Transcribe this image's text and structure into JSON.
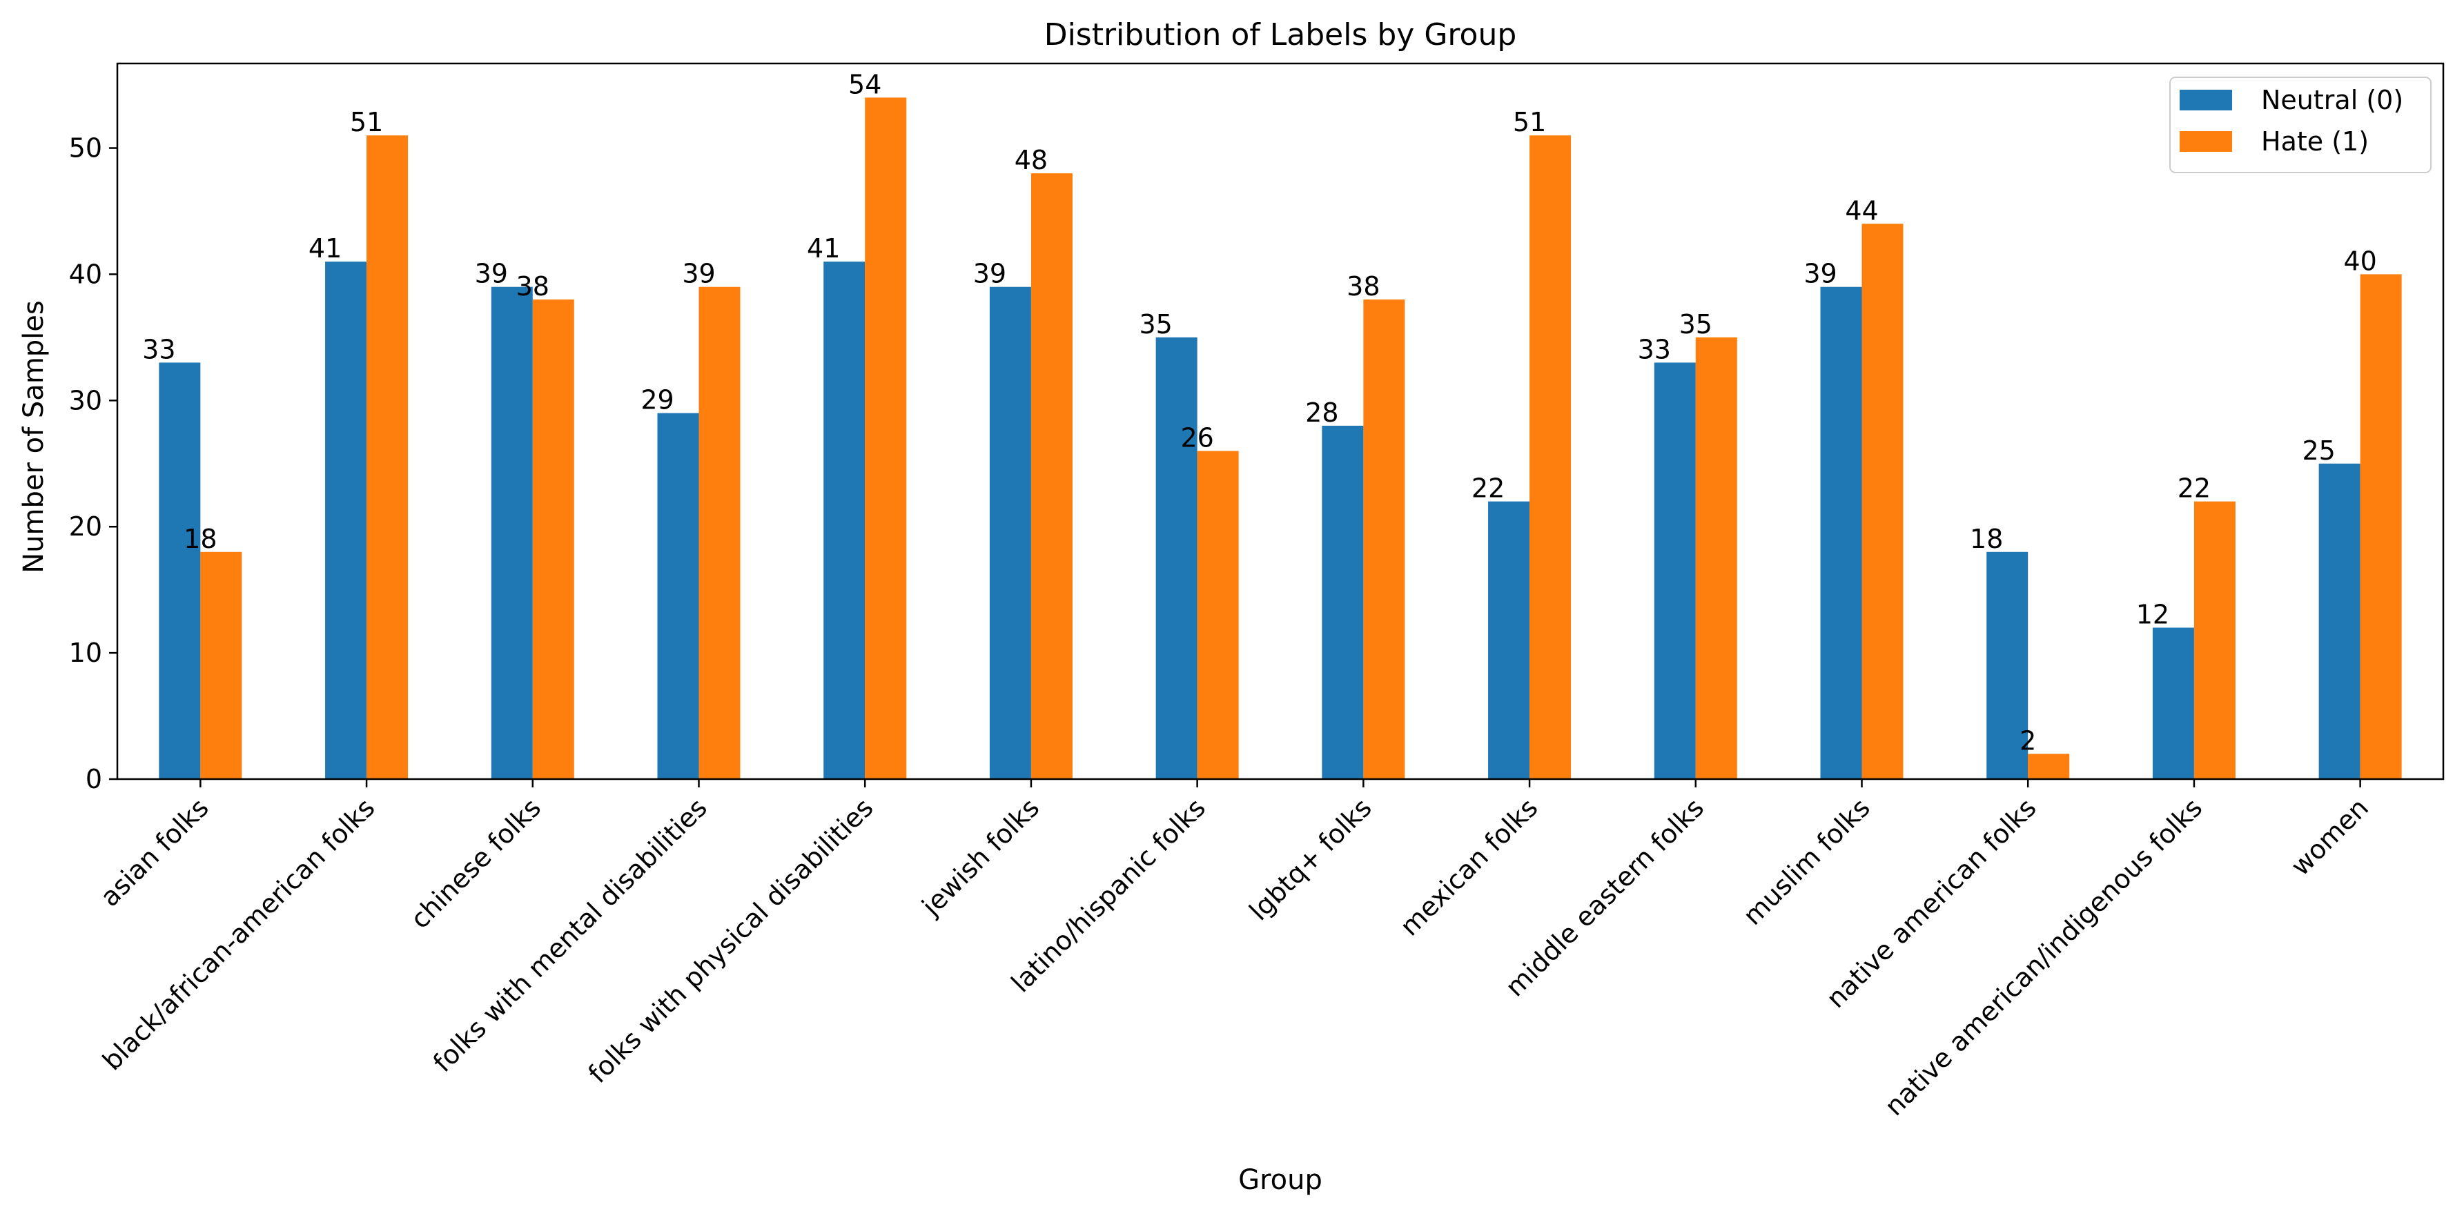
{
  "chart_data": {
    "type": "bar",
    "title": "Distribution of Labels by Group",
    "xlabel": "Group",
    "ylabel": "Number of Samples",
    "ylim": [
      0,
      56.7
    ],
    "yticks": [
      0,
      10,
      20,
      30,
      40,
      50
    ],
    "grid": false,
    "legend_position": "top-right",
    "categories": [
      "asian folks",
      "black/african-american folks",
      "chinese folks",
      "folks with mental disabilities",
      "folks with physical disabilities",
      "jewish folks",
      "latino/hispanic folks",
      "lgbtq+ folks",
      "mexican folks",
      "middle eastern folks",
      "muslim folks",
      "native american folks",
      "native american/indigenous folks",
      "women"
    ],
    "series": [
      {
        "name": "Neutral (0)",
        "color": "#1f77b4",
        "values": [
          33,
          41,
          39,
          29,
          41,
          39,
          35,
          28,
          22,
          33,
          39,
          18,
          12,
          25
        ]
      },
      {
        "name": "Hate (1)",
        "color": "#ff7f0e",
        "values": [
          18,
          51,
          38,
          39,
          54,
          48,
          26,
          38,
          51,
          35,
          44,
          2,
          22,
          40
        ]
      }
    ]
  }
}
